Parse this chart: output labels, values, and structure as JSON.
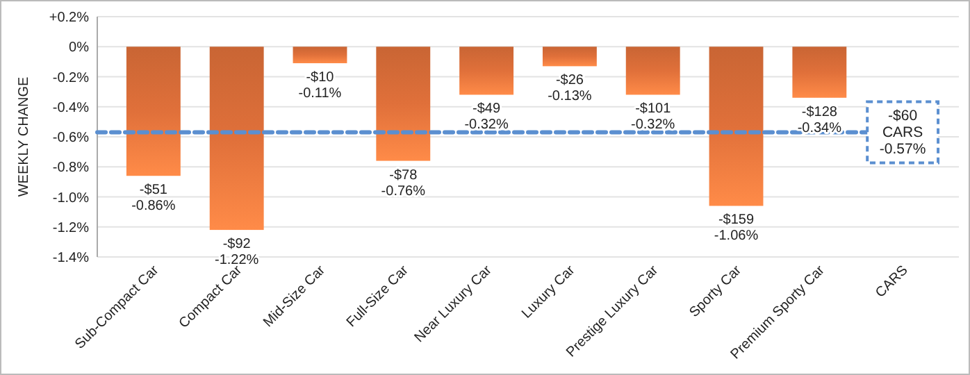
{
  "chart_data": {
    "type": "bar",
    "ylabel": "WEEKLY CHANGE",
    "categories": [
      "Sub-Compact Car",
      "Compact Car",
      "Mid-Size Car",
      "Full-Size Car",
      "Near Luxury Car",
      "Luxury Car",
      "Prestige Luxury Car",
      "Sporty Car",
      "Premium Sporty Car",
      "CARS"
    ],
    "values": [
      -0.86,
      -1.22,
      -0.11,
      -0.76,
      -0.32,
      -0.13,
      -0.32,
      -1.06,
      -0.34,
      null
    ],
    "value_labels": [
      "-$51\n-0.86%",
      "-$92\n-1.22%",
      "-$10\n-0.11%",
      "-$78\n-0.76%",
      "-$49\n-0.32%",
      "-$26\n-0.13%",
      "-$101\n-0.32%",
      "-$159\n-1.06%",
      "-$128\n-0.34%",
      null
    ],
    "color": "#e0703a",
    "ylim": [
      -1.4,
      0.2
    ],
    "yticks": [
      {
        "value": 0.2,
        "label": "+0.2%"
      },
      {
        "value": 0,
        "label": "0%"
      },
      {
        "value": -0.2,
        "label": "-0.2%"
      },
      {
        "value": -0.4,
        "label": "-0.4%"
      },
      {
        "value": -0.6,
        "label": "-0.6%"
      },
      {
        "value": -0.8,
        "label": "-0.8%"
      },
      {
        "value": -1.0,
        "label": "-1.0%"
      },
      {
        "value": -1.2,
        "label": "-1.2%"
      },
      {
        "value": -1.4,
        "label": "-1.4%"
      }
    ],
    "grid": "y",
    "ref_lines": [
      {
        "axis": "y",
        "value": -0.57,
        "label": "-$60\nCARS\n-0.57%",
        "color": "#5b8fd0",
        "line_style": "dashed"
      }
    ]
  }
}
